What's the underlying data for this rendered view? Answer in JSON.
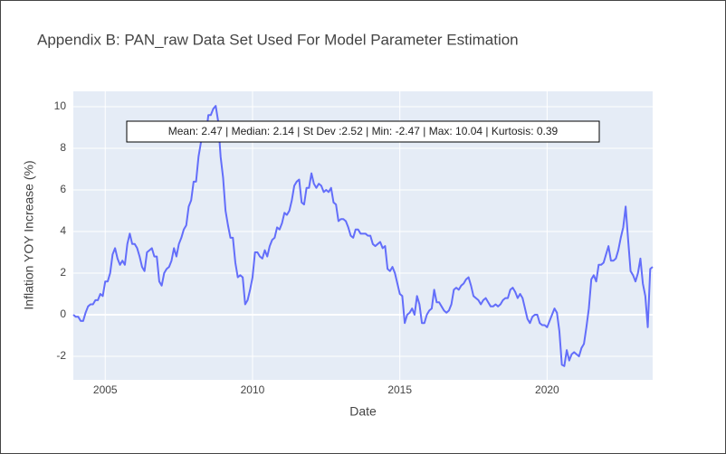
{
  "chart_data": {
    "type": "line",
    "title": "Appendix B: PAN_raw Data Set Used For Model Parameter Estimation",
    "x_label": "Date",
    "y_label": "Inflation YOY Increase (%)",
    "annotation": "Mean: 2.47 | Median: 2.14 | St Dev :2.52 | Min: -2.47 | Max: 10.04 | Kurtosis: 0.39",
    "x": [
      "2003-12",
      "2004-01",
      "2004-02",
      "2004-03",
      "2004-04",
      "2004-05",
      "2004-06",
      "2004-07",
      "2004-08",
      "2004-09",
      "2004-10",
      "2004-11",
      "2004-12",
      "2005-01",
      "2005-02",
      "2005-03",
      "2005-04",
      "2005-05",
      "2005-06",
      "2005-07",
      "2005-08",
      "2005-09",
      "2005-10",
      "2005-11",
      "2005-12",
      "2006-01",
      "2006-02",
      "2006-03",
      "2006-04",
      "2006-05",
      "2006-06",
      "2006-07",
      "2006-08",
      "2006-09",
      "2006-10",
      "2006-11",
      "2006-12",
      "2007-01",
      "2007-02",
      "2007-03",
      "2007-04",
      "2007-05",
      "2007-06",
      "2007-07",
      "2007-08",
      "2007-09",
      "2007-10",
      "2007-11",
      "2007-12",
      "2008-01",
      "2008-02",
      "2008-03",
      "2008-04",
      "2008-05",
      "2008-06",
      "2008-07",
      "2008-08",
      "2008-09",
      "2008-10",
      "2008-11",
      "2008-12",
      "2009-01",
      "2009-02",
      "2009-03",
      "2009-04",
      "2009-05",
      "2009-06",
      "2009-07",
      "2009-08",
      "2009-09",
      "2009-10",
      "2009-11",
      "2009-12",
      "2010-01",
      "2010-02",
      "2010-03",
      "2010-04",
      "2010-05",
      "2010-06",
      "2010-07",
      "2010-08",
      "2010-09",
      "2010-10",
      "2010-11",
      "2010-12",
      "2011-01",
      "2011-02",
      "2011-03",
      "2011-04",
      "2011-05",
      "2011-06",
      "2011-07",
      "2011-08",
      "2011-09",
      "2011-10",
      "2011-11",
      "2011-12",
      "2012-01",
      "2012-02",
      "2012-03",
      "2012-04",
      "2012-05",
      "2012-06",
      "2012-07",
      "2012-08",
      "2012-09",
      "2012-10",
      "2012-11",
      "2012-12",
      "2013-01",
      "2013-02",
      "2013-03",
      "2013-04",
      "2013-05",
      "2013-06",
      "2013-07",
      "2013-08",
      "2013-09",
      "2013-10",
      "2013-11",
      "2013-12",
      "2014-01",
      "2014-02",
      "2014-03",
      "2014-04",
      "2014-05",
      "2014-06",
      "2014-07",
      "2014-08",
      "2014-09",
      "2014-10",
      "2014-11",
      "2014-12",
      "2015-01",
      "2015-02",
      "2015-03",
      "2015-04",
      "2015-05",
      "2015-06",
      "2015-07",
      "2015-08",
      "2015-09",
      "2015-10",
      "2015-11",
      "2015-12",
      "2016-01",
      "2016-02",
      "2016-03",
      "2016-04",
      "2016-05",
      "2016-06",
      "2016-07",
      "2016-08",
      "2016-09",
      "2016-10",
      "2016-11",
      "2016-12",
      "2017-01",
      "2017-02",
      "2017-03",
      "2017-04",
      "2017-05",
      "2017-06",
      "2017-07",
      "2017-08",
      "2017-09",
      "2017-10",
      "2017-11",
      "2017-12",
      "2018-01",
      "2018-02",
      "2018-03",
      "2018-04",
      "2018-05",
      "2018-06",
      "2018-07",
      "2018-08",
      "2018-09",
      "2018-10",
      "2018-11",
      "2018-12",
      "2019-01",
      "2019-02",
      "2019-03",
      "2019-04",
      "2019-05",
      "2019-06",
      "2019-07",
      "2019-08",
      "2019-09",
      "2019-10",
      "2019-11",
      "2019-12",
      "2020-01",
      "2020-02",
      "2020-03",
      "2020-04",
      "2020-05",
      "2020-06",
      "2020-07",
      "2020-08",
      "2020-09",
      "2020-10",
      "2020-11",
      "2020-12",
      "2021-01",
      "2021-02",
      "2021-03",
      "2021-04",
      "2021-05",
      "2021-06",
      "2021-07",
      "2021-08",
      "2021-09",
      "2021-10",
      "2021-11",
      "2021-12",
      "2022-01",
      "2022-02",
      "2022-03",
      "2022-04",
      "2022-05",
      "2022-06",
      "2022-07",
      "2022-08",
      "2022-09",
      "2022-10",
      "2022-11",
      "2022-12",
      "2023-01",
      "2023-02",
      "2023-03",
      "2023-04",
      "2023-05",
      "2023-06",
      "2023-07",
      "2023-08"
    ],
    "series": [
      {
        "name": "PAN_raw",
        "color": "#636efa",
        "values": [
          0.0,
          -0.1,
          -0.1,
          -0.3,
          -0.3,
          0.1,
          0.4,
          0.5,
          0.5,
          0.7,
          0.7,
          1.0,
          0.9,
          1.6,
          1.6,
          2.0,
          2.9,
          3.2,
          2.7,
          2.4,
          2.6,
          2.4,
          3.4,
          3.9,
          3.4,
          3.4,
          3.2,
          2.8,
          2.3,
          2.1,
          3.0,
          3.1,
          3.2,
          2.8,
          2.8,
          1.6,
          1.4,
          2.0,
          2.2,
          2.3,
          2.6,
          3.2,
          2.8,
          3.4,
          3.7,
          4.1,
          4.3,
          5.2,
          5.5,
          6.4,
          6.4,
          7.6,
          8.3,
          8.6,
          8.6,
          9.6,
          9.6,
          9.9,
          10.04,
          9.3,
          7.6,
          6.6,
          5.0,
          4.3,
          3.7,
          3.7,
          2.5,
          1.8,
          1.9,
          1.8,
          0.5,
          0.7,
          1.2,
          1.8,
          3.0,
          3.0,
          2.8,
          2.7,
          3.1,
          2.8,
          3.3,
          3.6,
          3.7,
          4.2,
          4.1,
          4.4,
          4.9,
          4.8,
          5.0,
          5.5,
          6.2,
          6.4,
          6.5,
          5.4,
          5.3,
          6.1,
          6.1,
          6.8,
          6.3,
          6.1,
          6.3,
          6.2,
          5.9,
          6.0,
          5.9,
          6.1,
          5.4,
          5.3,
          4.5,
          4.6,
          4.6,
          4.5,
          4.2,
          3.8,
          3.7,
          4.1,
          4.1,
          3.9,
          3.9,
          3.9,
          3.8,
          3.8,
          3.4,
          3.3,
          3.4,
          3.5,
          3.2,
          3.3,
          2.2,
          2.1,
          2.3,
          2.0,
          1.5,
          1.0,
          0.9,
          -0.4,
          0.0,
          0.1,
          0.3,
          0.0,
          0.9,
          0.5,
          -0.4,
          -0.4,
          0.0,
          0.2,
          0.3,
          1.2,
          0.6,
          0.6,
          0.4,
          0.2,
          0.1,
          0.2,
          0.5,
          1.2,
          1.3,
          1.2,
          1.4,
          1.5,
          1.7,
          1.8,
          1.4,
          0.9,
          0.8,
          0.7,
          0.5,
          0.7,
          0.8,
          0.6,
          0.4,
          0.4,
          0.5,
          0.4,
          0.5,
          0.7,
          0.8,
          0.8,
          1.2,
          1.3,
          1.1,
          0.8,
          1.0,
          0.8,
          0.3,
          -0.2,
          -0.4,
          -0.1,
          0.0,
          0.0,
          -0.4,
          -0.5,
          -0.5,
          -0.6,
          -0.3,
          0.0,
          0.3,
          0.1,
          -0.8,
          -2.4,
          -2.47,
          -1.7,
          -2.2,
          -1.9,
          -1.8,
          -1.9,
          -2.0,
          -1.6,
          -1.4,
          -0.6,
          0.3,
          1.7,
          1.9,
          1.6,
          2.4,
          2.4,
          2.5,
          2.9,
          3.3,
          2.6,
          2.6,
          2.7,
          3.1,
          3.7,
          4.2,
          5.2,
          3.6,
          2.1,
          1.9,
          1.6,
          2.0,
          2.7,
          1.5,
          0.9,
          -0.6,
          2.2,
          2.3
        ]
      }
    ],
    "xlim": [
      "2003-12",
      "2023-08"
    ],
    "xticks": [
      2005,
      2010,
      2015,
      2020
    ],
    "ylim": [
      -3.13,
      10.74
    ],
    "yticks": [
      -2,
      0,
      2,
      4,
      6,
      8,
      10
    ],
    "grid": true
  }
}
